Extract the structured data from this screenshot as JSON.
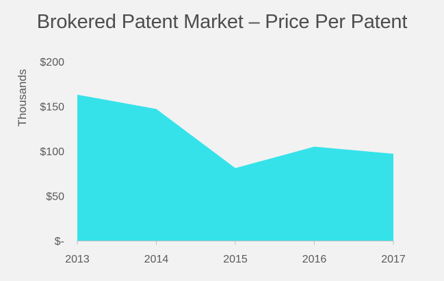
{
  "chart_data": {
    "type": "area",
    "title": "Brokered Patent Market – Price Per Patent",
    "xlabel": "",
    "ylabel": "Thousands",
    "categories": [
      "2013",
      "2014",
      "2015",
      "2016",
      "2017"
    ],
    "values": [
      163,
      147,
      81,
      105,
      97
    ],
    "ylim": [
      0,
      200
    ],
    "yticks": [
      0,
      50,
      100,
      150,
      200
    ],
    "ytick_labels": [
      "$-",
      "$50",
      "$100",
      "$150",
      "$200"
    ],
    "grid": false,
    "legend": "none",
    "colors": {
      "fill": "#36e2ea",
      "axis": "#bfbfbf",
      "text": "#595959",
      "title": "#4d4d4d",
      "background": "#f2f2f2"
    }
  }
}
